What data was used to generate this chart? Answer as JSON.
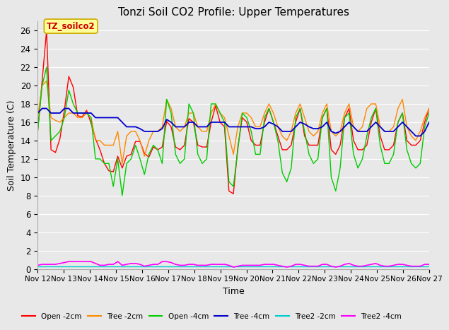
{
  "title": "Tonzi Soil CO2 Profile: Upper Temperatures",
  "xlabel": "Time",
  "ylabel": "Soil Temperature (C)",
  "ylim": [
    0,
    27
  ],
  "yticks": [
    0,
    2,
    4,
    6,
    8,
    10,
    12,
    14,
    16,
    18,
    20,
    22,
    24,
    26
  ],
  "xtick_labels": [
    "Nov 12",
    "Nov 13",
    "Nov 14",
    "Nov 15",
    "Nov 16",
    "Nov 17",
    "Nov 18",
    "Nov 19",
    "Nov 20",
    "Nov 21",
    "Nov 22",
    "Nov 23",
    "Nov 24",
    "Nov 25",
    "Nov 26",
    "Nov 27"
  ],
  "background_color": "#e8e8e8",
  "grid_color": "#ffffff",
  "annotation_text": "TZ_soilco2",
  "annotation_color": "#cc0000",
  "annotation_bg": "#ffff99",
  "annotation_border": "#ccaa00",
  "series": {
    "Open -2cm": {
      "color": "#ff0000",
      "lw": 1.0,
      "values": [
        15.0,
        20.5,
        26.0,
        13.0,
        12.7,
        14.2,
        17.3,
        21.0,
        19.8,
        16.7,
        16.6,
        17.3,
        15.9,
        14.2,
        13.0,
        11.5,
        10.7,
        10.6,
        12.3,
        11.0,
        12.3,
        12.5,
        13.9,
        13.9,
        12.6,
        12.2,
        13.3,
        13.0,
        13.3,
        16.1,
        15.5,
        13.3,
        13.0,
        13.5,
        16.4,
        16.0,
        13.5,
        13.3,
        13.3,
        16.0,
        17.8,
        16.0,
        15.5,
        8.5,
        8.2,
        13.3,
        16.5,
        16.0,
        14.0,
        13.5,
        13.5,
        16.0,
        17.5,
        16.0,
        14.5,
        13.0,
        13.0,
        13.5,
        16.0,
        17.5,
        14.5,
        13.5,
        13.5,
        13.5,
        16.5,
        17.5,
        13.0,
        12.5,
        13.5,
        16.5,
        17.5,
        14.0,
        13.0,
        13.0,
        13.5,
        16.0,
        17.5,
        14.5,
        13.0,
        13.0,
        13.5,
        16.0,
        17.0,
        14.0,
        13.5,
        13.5,
        14.0,
        16.0,
        17.5
      ]
    },
    "Tree -2cm": {
      "color": "#ff8800",
      "lw": 1.0,
      "values": [
        16.5,
        20.0,
        20.5,
        16.5,
        16.2,
        16.0,
        16.5,
        17.0,
        17.0,
        16.5,
        16.5,
        17.0,
        16.5,
        14.0,
        14.0,
        13.5,
        13.5,
        13.5,
        15.0,
        11.5,
        14.5,
        15.0,
        15.0,
        14.0,
        12.3,
        14.0,
        15.0,
        15.0,
        15.5,
        18.5,
        17.5,
        15.5,
        15.0,
        15.5,
        17.0,
        17.0,
        15.5,
        15.0,
        15.0,
        17.0,
        18.0,
        17.0,
        16.5,
        14.5,
        12.5,
        15.5,
        17.0,
        17.0,
        16.5,
        15.5,
        15.5,
        17.0,
        18.0,
        17.0,
        15.5,
        14.5,
        14.0,
        15.0,
        17.0,
        18.0,
        16.5,
        15.0,
        14.5,
        15.0,
        17.0,
        18.0,
        15.0,
        14.5,
        15.0,
        17.0,
        18.0,
        15.5,
        15.0,
        15.5,
        17.5,
        18.0,
        18.0,
        15.5,
        15.0,
        15.0,
        15.5,
        17.5,
        18.5,
        15.5,
        14.5,
        14.0,
        15.0,
        16.5,
        17.5
      ]
    },
    "Open -4cm": {
      "color": "#00cc00",
      "lw": 1.0,
      "values": [
        15.0,
        20.0,
        22.0,
        14.0,
        14.5,
        15.0,
        16.5,
        19.5,
        18.0,
        17.0,
        17.0,
        17.0,
        16.5,
        12.0,
        12.0,
        11.5,
        11.5,
        9.0,
        12.0,
        8.0,
        11.5,
        12.0,
        13.5,
        12.0,
        10.3,
        12.5,
        13.5,
        13.0,
        11.5,
        18.5,
        17.0,
        12.5,
        11.5,
        12.0,
        18.0,
        17.0,
        12.5,
        11.5,
        12.0,
        18.0,
        18.0,
        17.0,
        16.0,
        9.5,
        9.0,
        13.0,
        17.0,
        16.5,
        15.0,
        12.5,
        12.5,
        16.5,
        17.5,
        16.0,
        14.0,
        10.5,
        9.5,
        11.0,
        16.5,
        17.5,
        15.0,
        12.5,
        11.5,
        12.0,
        16.5,
        17.5,
        10.0,
        8.5,
        11.0,
        16.5,
        17.0,
        12.5,
        11.0,
        12.0,
        14.5,
        16.5,
        17.5,
        13.5,
        11.5,
        11.5,
        12.5,
        16.0,
        17.0,
        13.0,
        11.5,
        11.0,
        11.5,
        15.5,
        17.0
      ]
    },
    "Tree -4cm": {
      "color": "#0000cc",
      "lw": 1.3,
      "values": [
        17.0,
        17.5,
        17.5,
        17.0,
        17.0,
        17.0,
        17.5,
        17.5,
        17.0,
        17.0,
        17.0,
        17.0,
        17.0,
        16.5,
        16.5,
        16.5,
        16.5,
        16.5,
        16.5,
        16.0,
        15.5,
        15.5,
        15.5,
        15.3,
        15.0,
        15.0,
        15.0,
        15.0,
        15.3,
        16.3,
        16.0,
        15.5,
        15.5,
        15.5,
        16.0,
        16.0,
        15.5,
        15.5,
        15.5,
        16.0,
        16.0,
        16.0,
        16.0,
        15.5,
        15.5,
        15.5,
        15.5,
        15.5,
        15.5,
        15.3,
        15.3,
        15.5,
        16.0,
        15.8,
        15.5,
        15.0,
        15.0,
        15.0,
        15.5,
        16.0,
        15.8,
        15.5,
        15.3,
        15.3,
        15.5,
        16.0,
        15.0,
        14.8,
        15.0,
        15.5,
        16.0,
        15.5,
        15.0,
        15.0,
        15.0,
        15.5,
        16.0,
        15.5,
        15.0,
        15.0,
        15.0,
        15.5,
        16.0,
        15.5,
        15.0,
        14.5,
        14.5,
        15.0,
        16.0
      ]
    },
    "Tree2 -2cm": {
      "color": "#00cccc",
      "lw": 1.0,
      "values": [
        0.3,
        0.3,
        0.3,
        0.3,
        0.3,
        0.3,
        0.3,
        0.3,
        0.3,
        0.3,
        0.3,
        0.3,
        0.3,
        0.3,
        0.3,
        0.3,
        0.3,
        0.3,
        0.3,
        0.3,
        0.3,
        0.3,
        0.3,
        0.3,
        0.3,
        0.3,
        0.3,
        0.3,
        0.3,
        0.3,
        0.3,
        0.3,
        0.3,
        0.3,
        0.3,
        0.3,
        0.3,
        0.3,
        0.3,
        0.3,
        0.3,
        0.3,
        0.3,
        0.3,
        0.3,
        0.3,
        0.3,
        0.3,
        0.3,
        0.3,
        0.3,
        0.3,
        0.3,
        0.3,
        0.3,
        0.3,
        0.3,
        0.3,
        0.3,
        0.3,
        0.3,
        0.3,
        0.3,
        0.3,
        0.3,
        0.3,
        0.3,
        0.3,
        0.3,
        0.3,
        0.3,
        0.3,
        0.3,
        0.3,
        0.3,
        0.3,
        0.3,
        0.3,
        0.3,
        0.3,
        0.3,
        0.3,
        0.3,
        0.3,
        0.3,
        0.3,
        0.3,
        0.3,
        0.3
      ]
    },
    "Tree2 -4cm": {
      "color": "#ff00ff",
      "lw": 1.2,
      "values": [
        0.4,
        0.5,
        0.5,
        0.5,
        0.5,
        0.6,
        0.7,
        0.8,
        0.8,
        0.8,
        0.8,
        0.8,
        0.8,
        0.6,
        0.4,
        0.4,
        0.5,
        0.5,
        0.8,
        0.4,
        0.5,
        0.6,
        0.6,
        0.5,
        0.3,
        0.4,
        0.5,
        0.5,
        0.8,
        0.8,
        0.7,
        0.5,
        0.4,
        0.4,
        0.5,
        0.5,
        0.4,
        0.4,
        0.4,
        0.5,
        0.5,
        0.5,
        0.5,
        0.4,
        0.2,
        0.3,
        0.4,
        0.4,
        0.4,
        0.4,
        0.4,
        0.5,
        0.5,
        0.5,
        0.4,
        0.3,
        0.2,
        0.3,
        0.5,
        0.5,
        0.4,
        0.3,
        0.3,
        0.3,
        0.5,
        0.5,
        0.3,
        0.2,
        0.3,
        0.5,
        0.6,
        0.4,
        0.3,
        0.3,
        0.4,
        0.5,
        0.6,
        0.4,
        0.3,
        0.3,
        0.4,
        0.5,
        0.5,
        0.4,
        0.3,
        0.3,
        0.3,
        0.5,
        0.5
      ]
    }
  },
  "legend_entries": [
    {
      "label": "Open -2cm",
      "color": "#ff0000"
    },
    {
      "label": "Tree -2cm",
      "color": "#ff8800"
    },
    {
      "label": "Open -4cm",
      "color": "#00cc00"
    },
    {
      "label": "Tree -4cm",
      "color": "#0000cc"
    },
    {
      "label": "Tree2 -2cm",
      "color": "#00cccc"
    },
    {
      "label": "Tree2 -4cm",
      "color": "#ff00ff"
    }
  ]
}
